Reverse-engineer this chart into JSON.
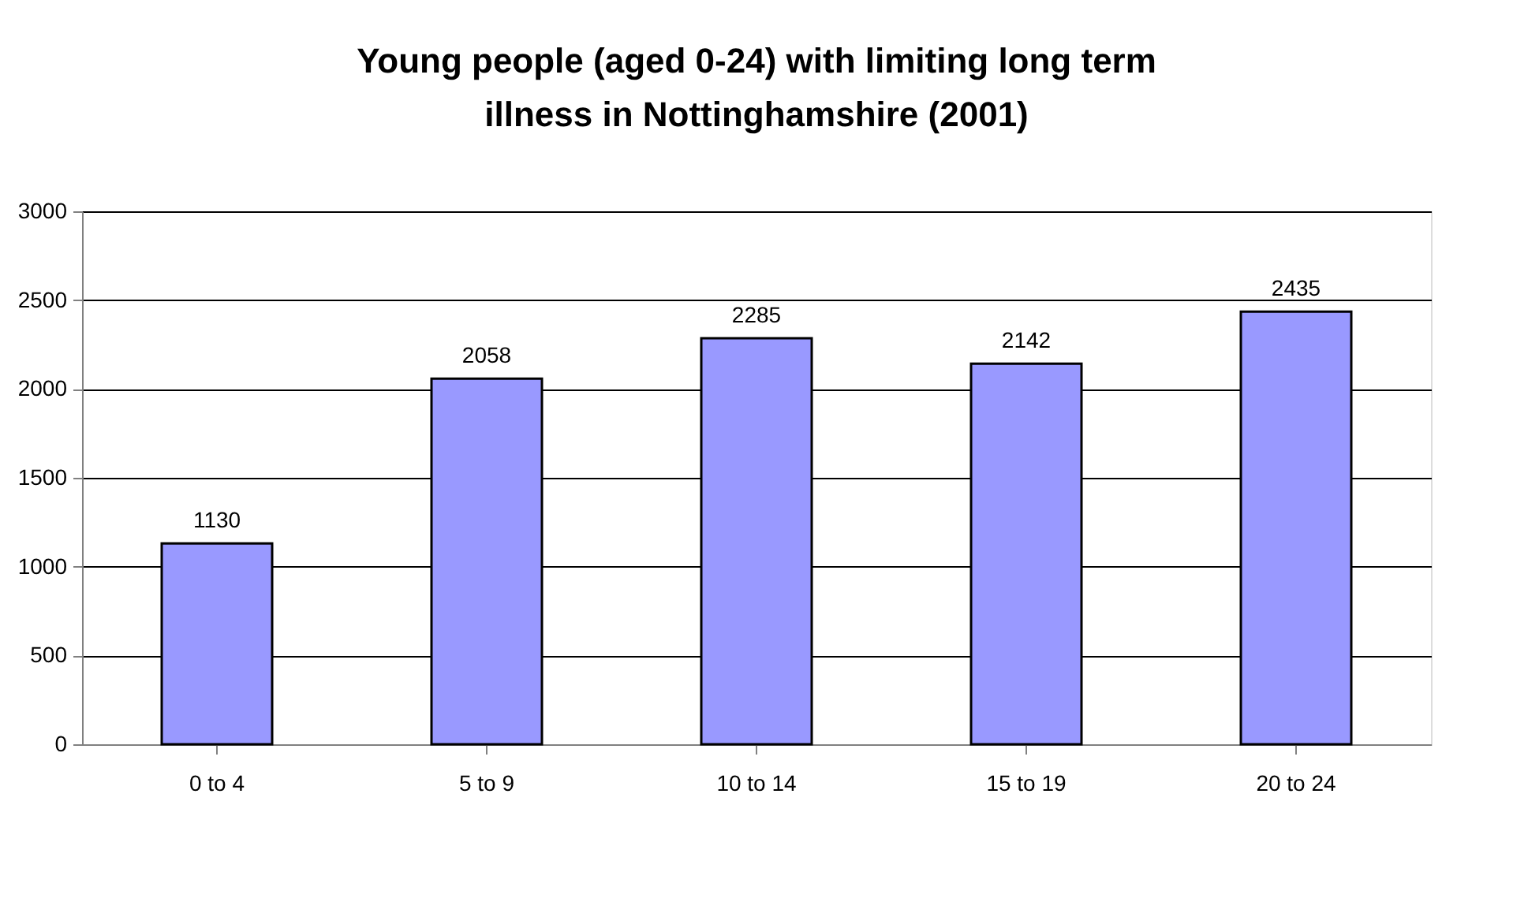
{
  "chart_data": {
    "type": "bar",
    "title": "Young people (aged 0-24) with limiting long term illness in Nottinghamshire (2001)",
    "categories": [
      "0 to 4",
      "5 to 9",
      "10 to 14",
      "15 to 19",
      "20 to 24"
    ],
    "values": [
      1130,
      2058,
      2285,
      2142,
      2435
    ],
    "color": "#9999ff",
    "ylim": [
      0,
      3000
    ],
    "yticks": [
      0,
      500,
      1000,
      1500,
      2000,
      2500,
      3000
    ],
    "grid": "y",
    "data_labels": true
  }
}
